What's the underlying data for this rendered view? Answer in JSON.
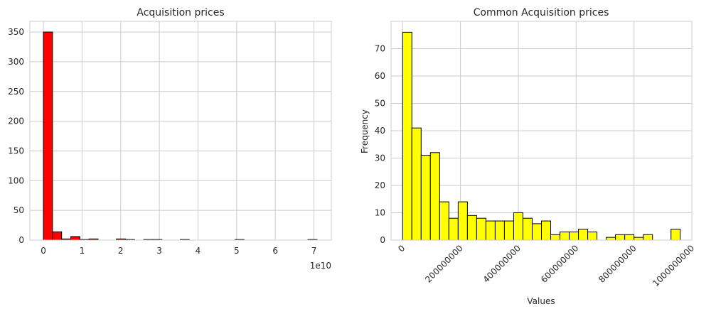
{
  "chart_data": [
    {
      "type": "bar",
      "subtype": "histogram",
      "title": "Acquisition prices",
      "xlabel": "",
      "ylabel": "",
      "x_offset_label": "1e10",
      "xlim": [
        -0.35,
        7.45
      ],
      "ylim": [
        0,
        368
      ],
      "x_ticks": [
        0,
        1,
        2,
        3,
        4,
        5,
        6,
        7
      ],
      "y_ticks": [
        0,
        50,
        100,
        150,
        200,
        250,
        300,
        350
      ],
      "bar_color": "#ff0000",
      "edge_color": "#000000",
      "grid": true,
      "bin_start": 0,
      "bin_width": 0.236,
      "values": [
        350,
        14,
        2,
        6,
        1,
        2,
        0,
        0,
        2,
        1,
        0,
        1,
        1,
        0,
        0,
        1,
        0,
        0,
        0,
        0,
        0,
        1,
        0,
        0,
        0,
        0,
        0,
        0,
        0,
        1
      ]
    },
    {
      "type": "bar",
      "subtype": "histogram",
      "title": "Common Acquisition prices",
      "xlabel": "Values",
      "ylabel": "Frequency",
      "xlim": [
        -40000000,
        1000000000
      ],
      "ylim": [
        0,
        80
      ],
      "x_ticks": [
        0,
        200000000,
        400000000,
        600000000,
        800000000,
        1000000000
      ],
      "x_tick_labels": [
        "0",
        "200000000",
        "400000000",
        "600000000",
        "800000000",
        "1000000000"
      ],
      "y_ticks": [
        0,
        10,
        20,
        30,
        40,
        50,
        60,
        70
      ],
      "bar_color": "#ffff00",
      "edge_color": "#000000",
      "grid": true,
      "bin_start": 0,
      "bin_width": 32000000,
      "values": [
        76,
        41,
        31,
        32,
        14,
        8,
        14,
        9,
        8,
        7,
        7,
        7,
        10,
        8,
        6,
        7,
        2,
        3,
        3,
        4,
        3,
        0,
        1,
        2,
        2,
        1,
        2,
        0,
        0,
        4
      ]
    }
  ]
}
